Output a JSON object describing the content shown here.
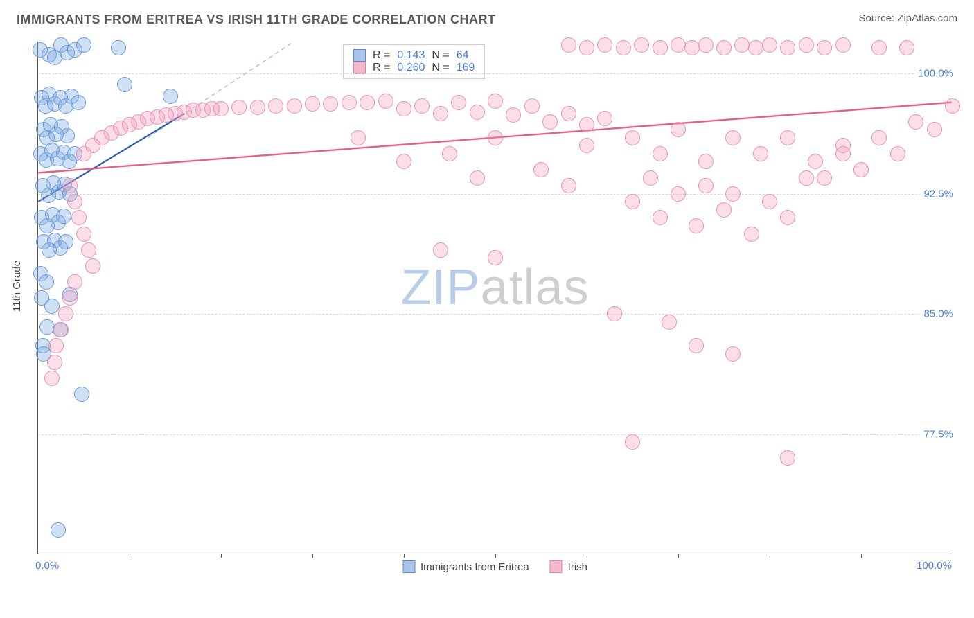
{
  "title": "IMMIGRANTS FROM ERITREA VS IRISH 11TH GRADE CORRELATION CHART",
  "source": "Source: ZipAtlas.com",
  "watermark_a": "ZIP",
  "watermark_b": "atlas",
  "chart": {
    "type": "scatter",
    "yaxis_label": "11th Grade",
    "background_color": "#ffffff",
    "grid_color": "#d8d8d8",
    "axis_color": "#555555",
    "label_color": "#4a7fd6",
    "xlim": [
      0,
      100
    ],
    "ylim": [
      70,
      102
    ],
    "yticks": [
      77.5,
      85.0,
      92.5,
      100.0
    ],
    "ytick_labels": [
      "77.5%",
      "85.0%",
      "92.5%",
      "100.0%"
    ],
    "xtick_labels": {
      "left": "0.0%",
      "right": "100.0%"
    },
    "xtick_marks": [
      10,
      20,
      30,
      40,
      50,
      60,
      70,
      80,
      90
    ],
    "marker_radius": 11,
    "marker_stroke_width": 1.5,
    "series": [
      {
        "name": "Immigrants from Eritrea",
        "fill": "rgba(120,165,224,0.35)",
        "stroke": "#6b99d6",
        "legend_fill": "#a8c4ea",
        "legend_stroke": "#5a8bd0",
        "stats": {
          "R": "0.143",
          "N": "64"
        },
        "trend": {
          "x1": 0,
          "y1": 92.0,
          "x2": 16,
          "y2": 97.5,
          "color": "#2b5db0",
          "width": 2.2
        },
        "trend_dashed": {
          "x1": 12,
          "y1": 96.0,
          "x2": 28,
          "y2": 102.0,
          "color": "#9bb6da",
          "width": 1.2
        },
        "points": [
          [
            0.2,
            101.5
          ],
          [
            1.2,
            101.2
          ],
          [
            1.8,
            101.0
          ],
          [
            2.5,
            101.8
          ],
          [
            3.2,
            101.3
          ],
          [
            4.0,
            101.5
          ],
          [
            5.0,
            101.8
          ],
          [
            8.8,
            101.6
          ],
          [
            0.4,
            98.5
          ],
          [
            0.8,
            98.0
          ],
          [
            1.2,
            98.7
          ],
          [
            1.8,
            98.1
          ],
          [
            2.4,
            98.5
          ],
          [
            3.0,
            98.0
          ],
          [
            3.6,
            98.6
          ],
          [
            4.4,
            98.2
          ],
          [
            0.6,
            96.5
          ],
          [
            1.0,
            96.0
          ],
          [
            1.4,
            96.8
          ],
          [
            2.0,
            96.2
          ],
          [
            2.6,
            96.7
          ],
          [
            3.2,
            96.1
          ],
          [
            9.5,
            99.3
          ],
          [
            14.5,
            98.6
          ],
          [
            0.3,
            95.0
          ],
          [
            0.9,
            94.6
          ],
          [
            1.5,
            95.2
          ],
          [
            2.1,
            94.7
          ],
          [
            2.8,
            95.1
          ],
          [
            3.4,
            94.5
          ],
          [
            4.0,
            95.0
          ],
          [
            0.5,
            93.0
          ],
          [
            1.1,
            92.4
          ],
          [
            1.7,
            93.2
          ],
          [
            2.3,
            92.6
          ],
          [
            2.9,
            93.1
          ],
          [
            3.5,
            92.5
          ],
          [
            0.4,
            91.0
          ],
          [
            1.0,
            90.5
          ],
          [
            1.6,
            91.2
          ],
          [
            2.2,
            90.7
          ],
          [
            2.8,
            91.1
          ],
          [
            0.6,
            89.5
          ],
          [
            1.2,
            89.0
          ],
          [
            1.8,
            89.6
          ],
          [
            2.4,
            89.1
          ],
          [
            3.0,
            89.5
          ],
          [
            0.3,
            87.5
          ],
          [
            0.9,
            87.0
          ],
          [
            1.5,
            85.5
          ],
          [
            2.4,
            84.0
          ],
          [
            1.0,
            84.2
          ],
          [
            0.5,
            83.0
          ],
          [
            0.4,
            86.0
          ],
          [
            3.5,
            86.2
          ],
          [
            4.8,
            80.0
          ],
          [
            0.6,
            82.5
          ],
          [
            2.2,
            71.5
          ]
        ]
      },
      {
        "name": "Irish",
        "fill": "rgba(244,160,190,0.35)",
        "stroke": "#e88fb0",
        "legend_fill": "#f5b9cf",
        "legend_stroke": "#e57fa5",
        "stats": {
          "R": "0.260",
          "N": "169"
        },
        "trend": {
          "x1": 0,
          "y1": 93.8,
          "x2": 100,
          "y2": 98.2,
          "color": "#e5608c",
          "width": 2.4
        },
        "points": [
          [
            58,
            101.8
          ],
          [
            60,
            101.6
          ],
          [
            62,
            101.8
          ],
          [
            64,
            101.6
          ],
          [
            66,
            101.8
          ],
          [
            68,
            101.6
          ],
          [
            70,
            101.8
          ],
          [
            71.5,
            101.6
          ],
          [
            73,
            101.8
          ],
          [
            75,
            101.6
          ],
          [
            77,
            101.8
          ],
          [
            78.5,
            101.6
          ],
          [
            80,
            101.8
          ],
          [
            82,
            101.6
          ],
          [
            84,
            101.8
          ],
          [
            86,
            101.6
          ],
          [
            88,
            101.8
          ],
          [
            92,
            101.6
          ],
          [
            95,
            101.6
          ],
          [
            5,
            95.0
          ],
          [
            6,
            95.5
          ],
          [
            7,
            96.0
          ],
          [
            8,
            96.3
          ],
          [
            9,
            96.6
          ],
          [
            10,
            96.8
          ],
          [
            11,
            97.0
          ],
          [
            12,
            97.2
          ],
          [
            13,
            97.3
          ],
          [
            14,
            97.4
          ],
          [
            15,
            97.5
          ],
          [
            16,
            97.6
          ],
          [
            17,
            97.7
          ],
          [
            18,
            97.7
          ],
          [
            19,
            97.8
          ],
          [
            20,
            97.8
          ],
          [
            22,
            97.9
          ],
          [
            24,
            97.9
          ],
          [
            26,
            98.0
          ],
          [
            28,
            98.0
          ],
          [
            30,
            98.1
          ],
          [
            32,
            98.1
          ],
          [
            34,
            98.2
          ],
          [
            36,
            98.2
          ],
          [
            38,
            98.3
          ],
          [
            40,
            97.8
          ],
          [
            42,
            98.0
          ],
          [
            44,
            97.5
          ],
          [
            46,
            98.2
          ],
          [
            48,
            97.6
          ],
          [
            50,
            98.3
          ],
          [
            52,
            97.4
          ],
          [
            54,
            98.0
          ],
          [
            56,
            97.0
          ],
          [
            58,
            97.5
          ],
          [
            60,
            96.8
          ],
          [
            62,
            97.2
          ],
          [
            35,
            96.0
          ],
          [
            40,
            94.5
          ],
          [
            45,
            95.0
          ],
          [
            48,
            93.5
          ],
          [
            50,
            96.0
          ],
          [
            55,
            94.0
          ],
          [
            58,
            93.0
          ],
          [
            60,
            95.5
          ],
          [
            3.5,
            93.0
          ],
          [
            4.0,
            92.0
          ],
          [
            4.5,
            91.0
          ],
          [
            5.0,
            90.0
          ],
          [
            5.5,
            89.0
          ],
          [
            6.0,
            88.0
          ],
          [
            4.0,
            87.0
          ],
          [
            3.5,
            86.0
          ],
          [
            3.0,
            85.0
          ],
          [
            2.5,
            84.0
          ],
          [
            2.0,
            83.0
          ],
          [
            1.8,
            82.0
          ],
          [
            1.5,
            81.0
          ],
          [
            44,
            89.0
          ],
          [
            50,
            88.5
          ],
          [
            65,
            92.0
          ],
          [
            67,
            93.5
          ],
          [
            68,
            91.0
          ],
          [
            70,
            92.5
          ],
          [
            72,
            90.5
          ],
          [
            73,
            93.0
          ],
          [
            75,
            91.5
          ],
          [
            76,
            92.5
          ],
          [
            78,
            90.0
          ],
          [
            80,
            92.0
          ],
          [
            82,
            91.0
          ],
          [
            84,
            93.5
          ],
          [
            63,
            85.0
          ],
          [
            76,
            82.5
          ],
          [
            69,
            84.5
          ],
          [
            72,
            83.0
          ],
          [
            65,
            77.0
          ],
          [
            82,
            76.0
          ],
          [
            100,
            98.0
          ],
          [
            98,
            96.5
          ],
          [
            96,
            97.0
          ],
          [
            94,
            95.0
          ],
          [
            92,
            96.0
          ],
          [
            90,
            94.0
          ],
          [
            88,
            95.5
          ],
          [
            86,
            93.5
          ],
          [
            65,
            96.0
          ],
          [
            68,
            95.0
          ],
          [
            70,
            96.5
          ],
          [
            73,
            94.5
          ],
          [
            76,
            96.0
          ],
          [
            79,
            95.0
          ],
          [
            82,
            96.0
          ],
          [
            85,
            94.5
          ],
          [
            88,
            95.0
          ]
        ]
      }
    ],
    "legend_top_labels": {
      "R": "R =",
      "N": "N ="
    },
    "legend_bottom_labels": [
      "Immigrants from Eritrea",
      "Irish"
    ]
  }
}
